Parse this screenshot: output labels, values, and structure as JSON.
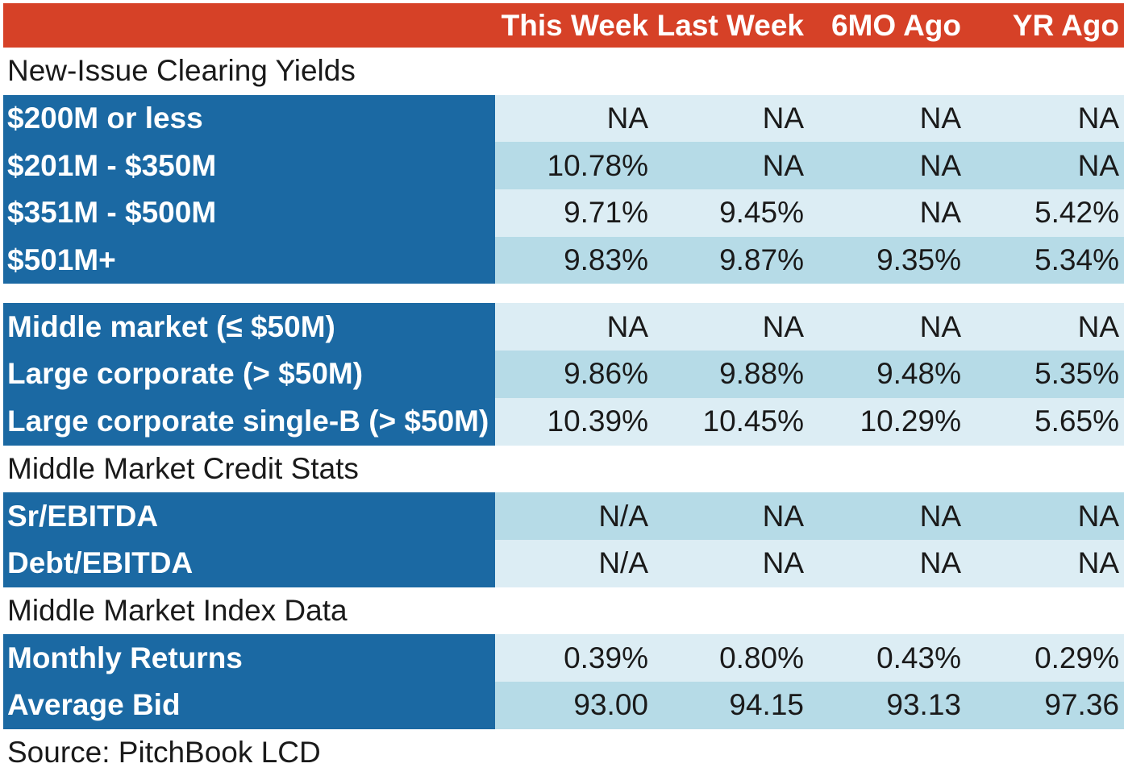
{
  "chart_data": {
    "type": "table",
    "columns": [
      "This Week",
      "Last Week",
      "6MO Ago",
      "YR Ago"
    ],
    "sections": [
      {
        "title": "New-Issue Clearing Yields",
        "rows": [
          {
            "label": "$200M or less",
            "values": [
              "NA",
              "NA",
              "NA",
              "NA"
            ]
          },
          {
            "label": "$201M - $350M",
            "values": [
              "10.78%",
              "NA",
              "NA",
              "NA"
            ]
          },
          {
            "label": "$351M - $500M",
            "values": [
              "9.71%",
              "9.45%",
              "NA",
              "5.42%"
            ]
          },
          {
            "label": "$501M+",
            "values": [
              "9.83%",
              "9.87%",
              "9.35%",
              "5.34%"
            ]
          }
        ]
      },
      {
        "title": "",
        "rows": [
          {
            "label": "Middle market (≤ $50M)",
            "values": [
              "NA",
              "NA",
              "NA",
              "NA"
            ]
          },
          {
            "label": "Large corporate (> $50M)",
            "values": [
              "9.86%",
              "9.88%",
              "9.48%",
              "5.35%"
            ]
          },
          {
            "label": "Large corporate single-B (> $50M)",
            "values": [
              "10.39%",
              "10.45%",
              "10.29%",
              "5.65%"
            ]
          }
        ]
      },
      {
        "title": "Middle Market Credit Stats",
        "rows": [
          {
            "label": "Sr/EBITDA",
            "values": [
              "N/A",
              "NA",
              "NA",
              "NA"
            ]
          },
          {
            "label": "Debt/EBITDA",
            "values": [
              "N/A",
              "NA",
              "NA",
              "NA"
            ]
          }
        ]
      },
      {
        "title": "Middle Market Index Data",
        "rows": [
          {
            "label": "Monthly Returns",
            "values": [
              "0.39%",
              "0.80%",
              "0.43%",
              "0.29%"
            ]
          },
          {
            "label": "Average Bid",
            "values": [
              "93.00",
              "94.15",
              "93.13",
              "97.36"
            ]
          }
        ]
      }
    ],
    "source": "Source: PitchBook LCD"
  },
  "colors": {
    "header_bg": "#d64127",
    "label_bg": "#1b69a3",
    "row_light": "#dcedf4",
    "row_mid": "#b6dbe7"
  }
}
